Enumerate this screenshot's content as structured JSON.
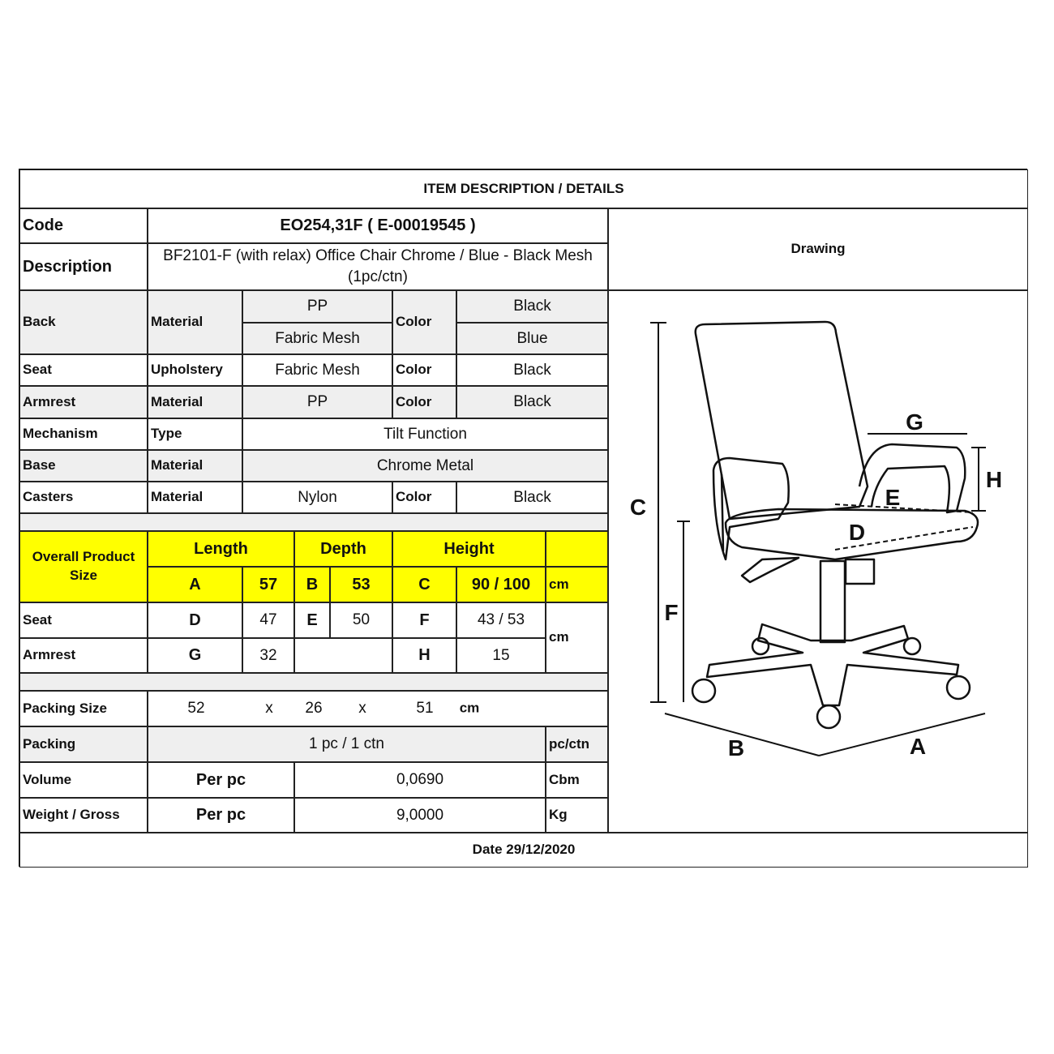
{
  "title": "ITEM DESCRIPTION / DETAILS",
  "code": {
    "label": "Code",
    "value": "EO254,31F  ( E-00019545 )"
  },
  "description": {
    "label": "Description",
    "value": "BF2101-F (with relax) Office Chair Chrome  /  Blue - Black Mesh (1pc/ctn)"
  },
  "drawing": {
    "label": "Drawing",
    "markers": {
      "A": "A",
      "B": "B",
      "C": "C",
      "D": "D",
      "E": "E",
      "F": "F",
      "G": "G",
      "H": "H"
    }
  },
  "specs": {
    "back": {
      "part": "Back",
      "attr": "Material",
      "values": [
        "PP",
        "Fabric Mesh"
      ],
      "color_label": "Color",
      "colors": [
        "Black",
        "Blue"
      ]
    },
    "seat": {
      "part": "Seat",
      "attr": "Upholstery",
      "value": "Fabric Mesh",
      "color_label": "Color",
      "color": "Black"
    },
    "armrest": {
      "part": "Armrest",
      "attr": "Material",
      "value": "PP",
      "color_label": "Color",
      "color": "Black"
    },
    "mechanism": {
      "part": "Mechanism",
      "attr": "Type",
      "value": "Tilt Function"
    },
    "base": {
      "part": "Base",
      "attr": "Material",
      "value": "Chrome Metal"
    },
    "casters": {
      "part": "Casters",
      "attr": "Material",
      "value": "Nylon",
      "color_label": "Color",
      "color": "Black"
    }
  },
  "size": {
    "label": "Overall Product Size",
    "headers": [
      "Length",
      "Depth",
      "Height"
    ],
    "overall": {
      "A": "A",
      "a": "57",
      "B": "B",
      "b": "53",
      "C": "C",
      "c": "90 / 100",
      "unit": "cm"
    },
    "seat": {
      "label": "Seat",
      "D": "D",
      "d": "47",
      "E": "E",
      "e": "50",
      "F": "F",
      "f": "43 / 53"
    },
    "armrest": {
      "label": "Armrest",
      "G": "G",
      "g": "32",
      "H": "H",
      "h": "15"
    },
    "unit": "cm"
  },
  "packing_size": {
    "label": "Packing Size",
    "l": "52",
    "x1": "x",
    "w": "26",
    "x2": "x",
    "h": "51",
    "unit": "cm"
  },
  "packing": {
    "label": "Packing",
    "value": "1 pc / 1 ctn",
    "unit": "pc/ctn"
  },
  "volume": {
    "label": "Volume",
    "per": "Per pc",
    "value": "0,0690",
    "unit": "Cbm"
  },
  "weight": {
    "label": "Weight / Gross",
    "per": "Per pc",
    "value": "9,0000",
    "unit": "Kg"
  },
  "date": "Date 29/12/2020",
  "colors": {
    "highlight": "#ffff00",
    "shade": "#efefef",
    "line": "#111111"
  }
}
